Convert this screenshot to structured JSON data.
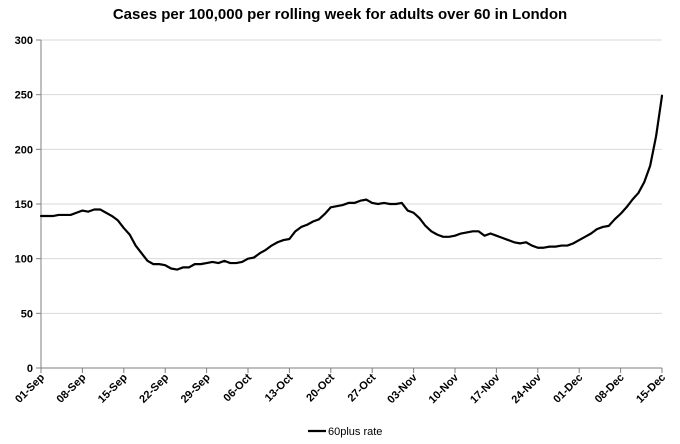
{
  "chart_data": {
    "type": "line",
    "title": "Cases per 100,000 per rolling week for adults over 60 in London",
    "xlabel": "",
    "ylabel": "",
    "ylim": [
      0,
      300
    ],
    "yticks": [
      0,
      50,
      100,
      150,
      200,
      250,
      300
    ],
    "xlim": [
      "2021-09-01",
      "2021-12-15"
    ],
    "xtick_labels": [
      "01-Sep",
      "08-Sep",
      "15-Sep",
      "22-Sep",
      "29-Sep",
      "06-Oct",
      "13-Oct",
      "20-Oct",
      "27-Oct",
      "03-Nov",
      "10-Nov",
      "17-Nov",
      "24-Nov",
      "01-Dec",
      "08-Dec",
      "15-Dec"
    ],
    "grid": "horizontal",
    "legend_position": "bottom",
    "series": [
      {
        "name": "60plus rate",
        "color": "#000000",
        "points": [
          [
            "2021-09-01",
            139
          ],
          [
            "2021-09-02",
            139
          ],
          [
            "2021-09-03",
            139
          ],
          [
            "2021-09-04",
            140
          ],
          [
            "2021-09-05",
            140
          ],
          [
            "2021-09-06",
            140
          ],
          [
            "2021-09-07",
            142
          ],
          [
            "2021-09-08",
            144
          ],
          [
            "2021-09-09",
            143
          ],
          [
            "2021-09-10",
            145
          ],
          [
            "2021-09-11",
            145
          ],
          [
            "2021-09-12",
            142
          ],
          [
            "2021-09-13",
            139
          ],
          [
            "2021-09-14",
            135
          ],
          [
            "2021-09-15",
            128
          ],
          [
            "2021-09-16",
            122
          ],
          [
            "2021-09-17",
            112
          ],
          [
            "2021-09-18",
            105
          ],
          [
            "2021-09-19",
            98
          ],
          [
            "2021-09-20",
            95
          ],
          [
            "2021-09-21",
            95
          ],
          [
            "2021-09-22",
            94
          ],
          [
            "2021-09-23",
            91
          ],
          [
            "2021-09-24",
            90
          ],
          [
            "2021-09-25",
            92
          ],
          [
            "2021-09-26",
            92
          ],
          [
            "2021-09-27",
            95
          ],
          [
            "2021-09-28",
            95
          ],
          [
            "2021-09-29",
            96
          ],
          [
            "2021-09-30",
            97
          ],
          [
            "2021-10-01",
            96
          ],
          [
            "2021-10-02",
            98
          ],
          [
            "2021-10-03",
            96
          ],
          [
            "2021-10-04",
            96
          ],
          [
            "2021-10-05",
            97
          ],
          [
            "2021-10-06",
            100
          ],
          [
            "2021-10-07",
            101
          ],
          [
            "2021-10-08",
            105
          ],
          [
            "2021-10-09",
            108
          ],
          [
            "2021-10-10",
            112
          ],
          [
            "2021-10-11",
            115
          ],
          [
            "2021-10-12",
            117
          ],
          [
            "2021-10-13",
            118
          ],
          [
            "2021-10-14",
            125
          ],
          [
            "2021-10-15",
            129
          ],
          [
            "2021-10-16",
            131
          ],
          [
            "2021-10-17",
            134
          ],
          [
            "2021-10-18",
            136
          ],
          [
            "2021-10-19",
            141
          ],
          [
            "2021-10-20",
            147
          ],
          [
            "2021-10-21",
            148
          ],
          [
            "2021-10-22",
            149
          ],
          [
            "2021-10-23",
            151
          ],
          [
            "2021-10-24",
            151
          ],
          [
            "2021-10-25",
            153
          ],
          [
            "2021-10-26",
            154
          ],
          [
            "2021-10-27",
            151
          ],
          [
            "2021-10-28",
            150
          ],
          [
            "2021-10-29",
            151
          ],
          [
            "2021-10-30",
            150
          ],
          [
            "2021-10-31",
            150
          ],
          [
            "2021-11-01",
            151
          ],
          [
            "2021-11-02",
            144
          ],
          [
            "2021-11-03",
            142
          ],
          [
            "2021-11-04",
            137
          ],
          [
            "2021-11-05",
            130
          ],
          [
            "2021-11-06",
            125
          ],
          [
            "2021-11-07",
            122
          ],
          [
            "2021-11-08",
            120
          ],
          [
            "2021-11-09",
            120
          ],
          [
            "2021-11-10",
            121
          ],
          [
            "2021-11-11",
            123
          ],
          [
            "2021-11-12",
            124
          ],
          [
            "2021-11-13",
            125
          ],
          [
            "2021-11-14",
            125
          ],
          [
            "2021-11-15",
            121
          ],
          [
            "2021-11-16",
            123
          ],
          [
            "2021-11-17",
            121
          ],
          [
            "2021-11-18",
            119
          ],
          [
            "2021-11-19",
            117
          ],
          [
            "2021-11-20",
            115
          ],
          [
            "2021-11-21",
            114
          ],
          [
            "2021-11-22",
            115
          ],
          [
            "2021-11-23",
            112
          ],
          [
            "2021-11-24",
            110
          ],
          [
            "2021-11-25",
            110
          ],
          [
            "2021-11-26",
            111
          ],
          [
            "2021-11-27",
            111
          ],
          [
            "2021-11-28",
            112
          ],
          [
            "2021-11-29",
            112
          ],
          [
            "2021-11-30",
            114
          ],
          [
            "2021-12-01",
            117
          ],
          [
            "2021-12-02",
            120
          ],
          [
            "2021-12-03",
            123
          ],
          [
            "2021-12-04",
            127
          ],
          [
            "2021-12-05",
            129
          ],
          [
            "2021-12-06",
            130
          ],
          [
            "2021-12-07",
            136
          ],
          [
            "2021-12-08",
            141
          ],
          [
            "2021-12-09",
            147
          ],
          [
            "2021-12-10",
            154
          ],
          [
            "2021-12-11",
            160
          ],
          [
            "2021-12-12",
            170
          ],
          [
            "2021-12-13",
            185
          ],
          [
            "2021-12-14",
            212
          ],
          [
            "2021-12-15",
            249
          ]
        ]
      }
    ]
  }
}
